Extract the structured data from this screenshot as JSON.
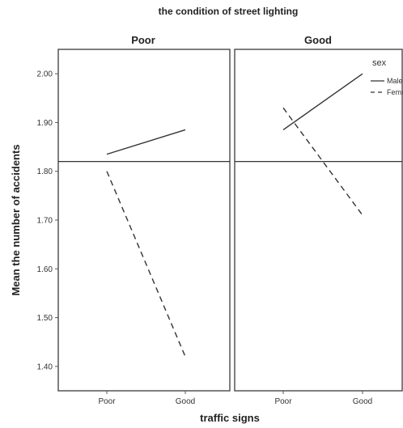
{
  "chart_data": {
    "type": "line",
    "title": "the condition of street lighting",
    "xlabel": "traffic signs",
    "ylabel": "Mean the number of accidents",
    "ylim": [
      1.35,
      2.05
    ],
    "yticks": [
      "1.40",
      "1.50",
      "1.60",
      "1.70",
      "1.80",
      "1.90",
      "2.00"
    ],
    "reference_line": 1.82,
    "legend": {
      "title": "sex",
      "placement": "top-right"
    },
    "panels": [
      {
        "label": "Poor",
        "categories": [
          "Poor",
          "Good"
        ],
        "series": [
          {
            "name": "Male",
            "style": "solid",
            "values": [
              1.835,
              1.885
            ]
          },
          {
            "name": "Female",
            "style": "dashed",
            "values": [
              1.8,
              1.42
            ]
          }
        ]
      },
      {
        "label": "Good",
        "categories": [
          "Poor",
          "Good"
        ],
        "series": [
          {
            "name": "Male",
            "style": "solid",
            "values": [
              1.885,
              2.0
            ]
          },
          {
            "name": "Female",
            "style": "dashed",
            "values": [
              1.93,
              1.71
            ]
          }
        ]
      }
    ]
  },
  "colors": {
    "line": "#333333",
    "frame": "#555555",
    "background": "#ffffff"
  }
}
